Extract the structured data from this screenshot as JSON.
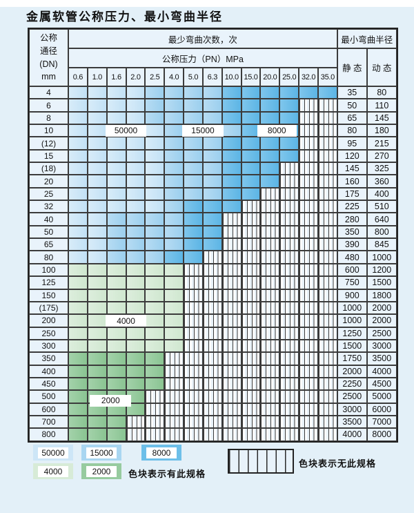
{
  "title": "金属软管公称压力、最小弯曲半径",
  "table": {
    "header": {
      "dn_lines": [
        "公称",
        "通径",
        "(DN)",
        "mm"
      ],
      "bend_cycles": "最少弯曲次数，次",
      "pressure": "公称压力（PN）MPa",
      "radius": "最小弯曲半径",
      "static": "静 态",
      "dynamic": "动 态",
      "pressures": [
        "0.6",
        "1.0",
        "1.6",
        "2.0",
        "2.5",
        "4.0",
        "5.0",
        "6.3",
        "10.0",
        "15.0",
        "20.0",
        "25.0",
        "32.0",
        "35.0"
      ]
    },
    "rows": [
      {
        "dn": "4",
        "cats": "aaaabbbbcccccc",
        "static": "35",
        "dynamic": "80"
      },
      {
        "dn": "6",
        "cats": "aaaabbbbccccxx",
        "static": "50",
        "dynamic": "110"
      },
      {
        "dn": "8",
        "cats": "aaaabbbbccccxx",
        "static": "65",
        "dynamic": "145"
      },
      {
        "dn": "10",
        "cats": "aaaaabbbbcccxx",
        "static": "80",
        "dynamic": "180"
      },
      {
        "dn": "(12)",
        "cats": "aaaaabbbccccxx",
        "static": "95",
        "dynamic": "215"
      },
      {
        "dn": "15",
        "cats": "aaaaabbbccccxx",
        "static": "120",
        "dynamic": "270"
      },
      {
        "dn": "(18)",
        "cats": "aaaaabbbcccxxx",
        "static": "145",
        "dynamic": "325"
      },
      {
        "dn": "20",
        "cats": "aaaaabbbcccxxx",
        "static": "160",
        "dynamic": "360"
      },
      {
        "dn": "25",
        "cats": "aaaaabbbccxxxx",
        "static": "175",
        "dynamic": "400"
      },
      {
        "dn": "32",
        "cats": "aaaaabcccxxxxx",
        "static": "225",
        "dynamic": "510"
      },
      {
        "dn": "40",
        "cats": "aabbbbccxxxxxx",
        "static": "280",
        "dynamic": "640"
      },
      {
        "dn": "50",
        "cats": "aabbbbccxxxxxx",
        "static": "350",
        "dynamic": "800"
      },
      {
        "dn": "65",
        "cats": "aabbbbccxxxxxx",
        "static": "390",
        "dynamic": "845"
      },
      {
        "dn": "80",
        "cats": "aabbbccxxxxxxx",
        "static": "480",
        "dynamic": "1000"
      },
      {
        "dn": "100",
        "cats": "ddddddxxxxxxxx",
        "static": "600",
        "dynamic": "1200"
      },
      {
        "dn": "125",
        "cats": "ddddddxxxxxxxx",
        "static": "750",
        "dynamic": "1500"
      },
      {
        "dn": "150",
        "cats": "ddddddxxxxxxxx",
        "static": "900",
        "dynamic": "1800"
      },
      {
        "dn": "(175)",
        "cats": "ddddddxxxxxxxx",
        "static": "1000",
        "dynamic": "2000"
      },
      {
        "dn": "200",
        "cats": "ddddddxxxxxxxx",
        "static": "1000",
        "dynamic": "2000"
      },
      {
        "dn": "250",
        "cats": "ddddddxxxxxxxx",
        "static": "1250",
        "dynamic": "2500"
      },
      {
        "dn": "300",
        "cats": "ddddddxxxxxxxx",
        "static": "1500",
        "dynamic": "3000"
      },
      {
        "dn": "350",
        "cats": "eeeeexxxxxxxxx",
        "static": "1750",
        "dynamic": "3500"
      },
      {
        "dn": "400",
        "cats": "eeeeexxxxxxxxx",
        "static": "2000",
        "dynamic": "4000"
      },
      {
        "dn": "450",
        "cats": "eeeeexxxxxxxxx",
        "static": "2250",
        "dynamic": "4500"
      },
      {
        "dn": "500",
        "cats": "eeeexxxxxxxxxx",
        "static": "2500",
        "dynamic": "5000"
      },
      {
        "dn": "600",
        "cats": "eeeexxxxxxxxxx",
        "static": "3000",
        "dynamic": "6000"
      },
      {
        "dn": "700",
        "cats": "eeexxxxxxxxxxx",
        "static": "3500",
        "dynamic": "7000"
      },
      {
        "dn": "800",
        "cats": "eeexxxxxxxxxxx",
        "static": "4000",
        "dynamic": "8000"
      }
    ],
    "region_labels": [
      {
        "text": "50000",
        "row": 3,
        "col": 2,
        "span": 2
      },
      {
        "text": "15000",
        "row": 3,
        "col": 6,
        "span": 2
      },
      {
        "text": "8000",
        "row": 3,
        "col": 9.9,
        "span": 1.9
      },
      {
        "text": "4000",
        "row": 18,
        "col": 2,
        "span": 2
      },
      {
        "text": "2000",
        "row": 24.3,
        "col": 1.2,
        "span": 2
      }
    ],
    "cat_meaning": {
      "a": "50000",
      "b": "15000",
      "c": "8000",
      "d": "4000",
      "e": "2000",
      "x": "无此规格"
    }
  },
  "legend": {
    "items": [
      {
        "label": "50000",
        "cat": "a"
      },
      {
        "label": "15000",
        "cat": "b"
      },
      {
        "label": "8000",
        "cat": "c"
      },
      {
        "label": "4000",
        "cat": "d"
      },
      {
        "label": "2000",
        "cat": "e"
      }
    ],
    "available_note": "色块表示有此规格",
    "unavailable_note": "色块表示无此规格"
  },
  "colors": {
    "c50000": "#cde6f7",
    "c15000": "#a9d6f1",
    "c8000": "#6dbfe9",
    "c4000": "#d7ebd7",
    "c2000": "#97cb9f",
    "border": "#3b3b3b"
  }
}
